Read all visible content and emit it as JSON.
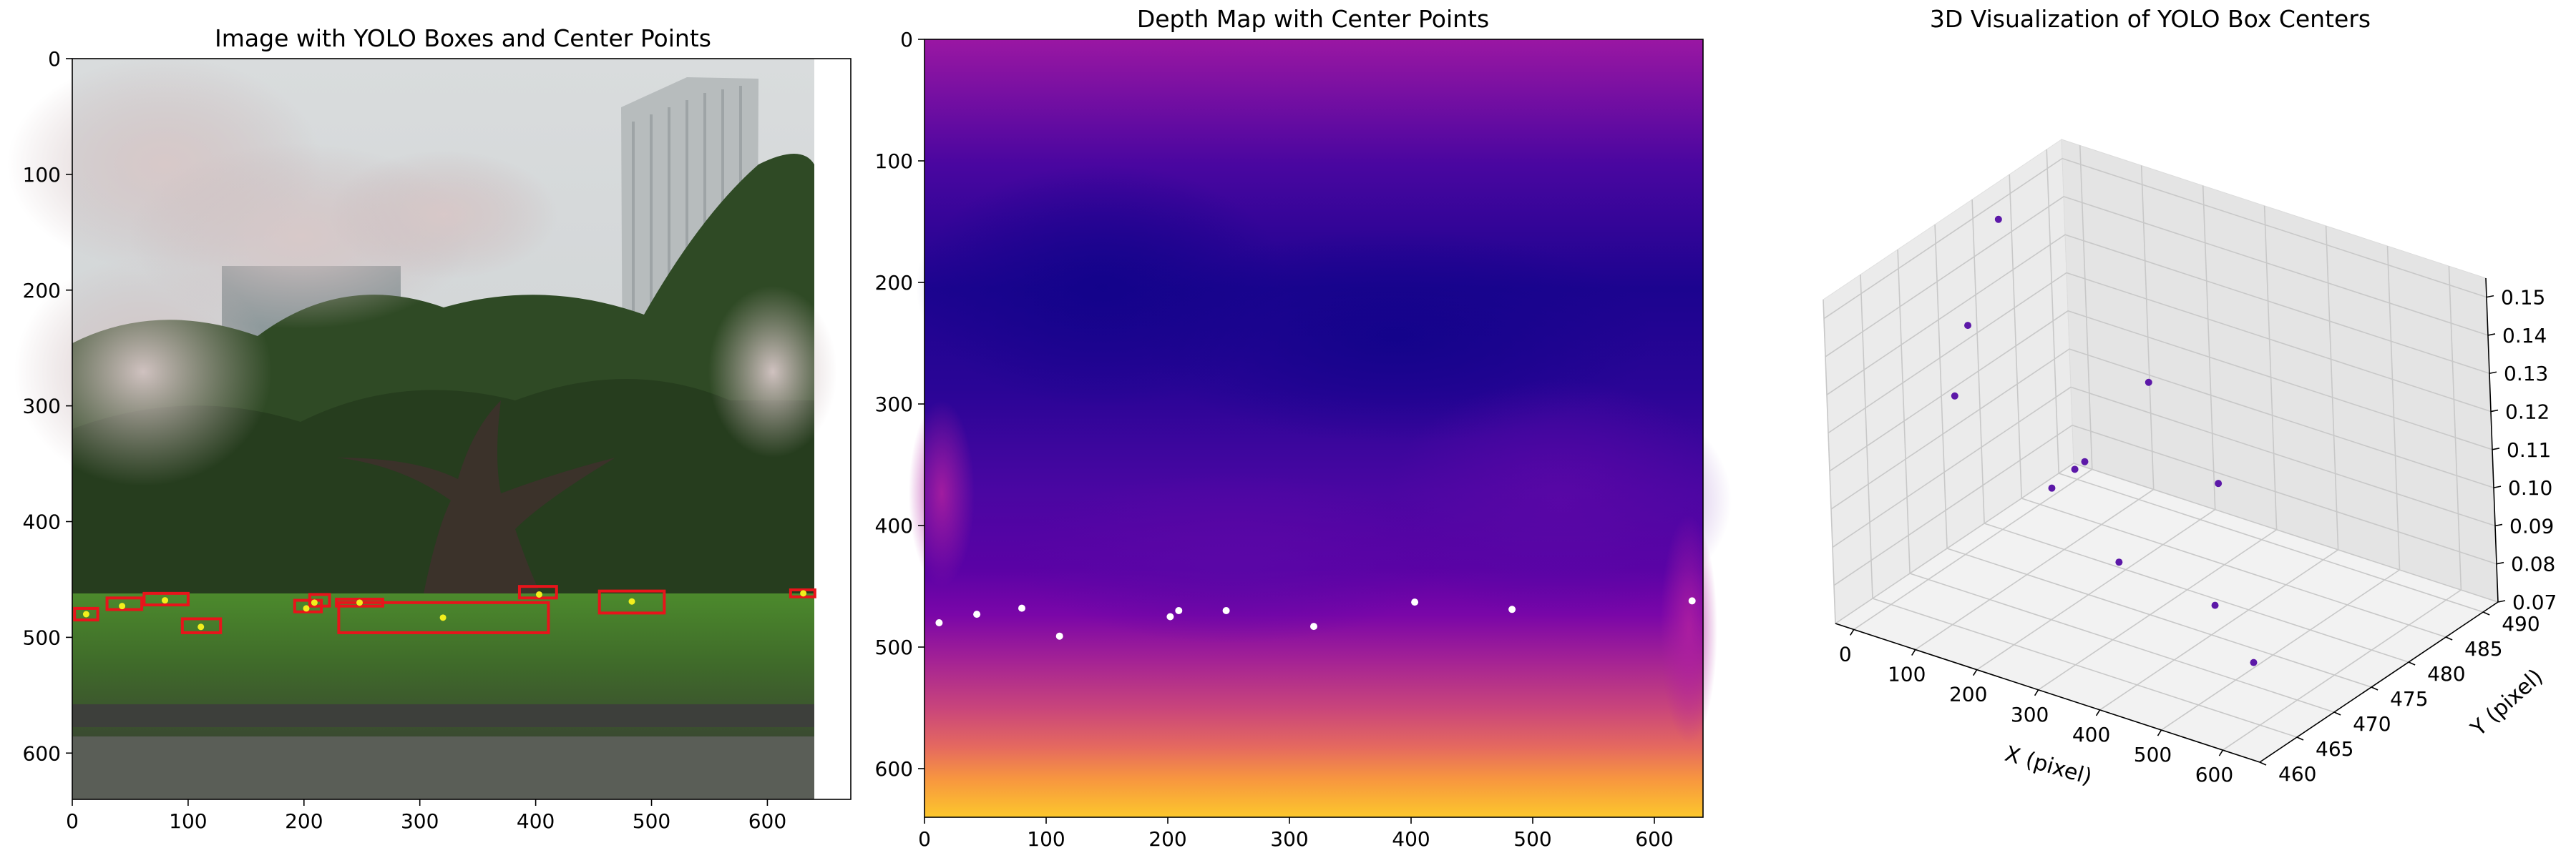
{
  "chart_data": [
    {
      "type": "scatter",
      "title": "Image with YOLO Boxes and Center Points",
      "xlim": [
        0,
        672
      ],
      "ylim": [
        640,
        0
      ],
      "xticks": [
        0,
        100,
        200,
        300,
        400,
        500,
        600
      ],
      "yticks": [
        0,
        100,
        200,
        300,
        400,
        500,
        600
      ],
      "image_extent": {
        "x": [
          0,
          640
        ],
        "y": [
          0,
          640
        ]
      },
      "box_color": "#e8141b",
      "center_color": "#f2ef1d",
      "boxes": [
        {
          "x1": 2,
          "y1": 475,
          "x2": 22,
          "y2": 485
        },
        {
          "x1": 30,
          "y1": 466,
          "x2": 60,
          "y2": 476
        },
        {
          "x1": 62,
          "y1": 462,
          "x2": 100,
          "y2": 472
        },
        {
          "x1": 95,
          "y1": 484,
          "x2": 128,
          "y2": 496
        },
        {
          "x1": 192,
          "y1": 468,
          "x2": 215,
          "y2": 478
        },
        {
          "x1": 205,
          "y1": 463,
          "x2": 222,
          "y2": 473
        },
        {
          "x1": 228,
          "y1": 467,
          "x2": 268,
          "y2": 473
        },
        {
          "x1": 230,
          "y1": 470,
          "x2": 411,
          "y2": 496
        },
        {
          "x1": 386,
          "y1": 456,
          "x2": 418,
          "y2": 466
        },
        {
          "x1": 455,
          "y1": 460,
          "x2": 511,
          "y2": 479
        },
        {
          "x1": 620,
          "y1": 459,
          "x2": 641,
          "y2": 465
        }
      ],
      "points": [
        {
          "x": 12,
          "y": 480
        },
        {
          "x": 43,
          "y": 473
        },
        {
          "x": 80,
          "y": 468
        },
        {
          "x": 111,
          "y": 491
        },
        {
          "x": 202,
          "y": 475
        },
        {
          "x": 209,
          "y": 470
        },
        {
          "x": 248,
          "y": 470
        },
        {
          "x": 320,
          "y": 483
        },
        {
          "x": 403,
          "y": 463
        },
        {
          "x": 483,
          "y": 469
        },
        {
          "x": 631,
          "y": 462
        }
      ]
    },
    {
      "type": "heatmap",
      "title": "Depth Map with Center Points",
      "xlim": [
        0,
        640
      ],
      "ylim": [
        640,
        0
      ],
      "xticks": [
        0,
        100,
        200,
        300,
        400,
        500,
        600
      ],
      "yticks": [
        0,
        100,
        200,
        300,
        400,
        500,
        600
      ],
      "colormap": "plasma",
      "point_color": "#ffffff",
      "points": [
        {
          "x": 12,
          "y": 480
        },
        {
          "x": 43,
          "y": 473
        },
        {
          "x": 80,
          "y": 468
        },
        {
          "x": 111,
          "y": 491
        },
        {
          "x": 202,
          "y": 475
        },
        {
          "x": 209,
          "y": 470
        },
        {
          "x": 248,
          "y": 470
        },
        {
          "x": 320,
          "y": 483
        },
        {
          "x": 403,
          "y": 463
        },
        {
          "x": 483,
          "y": 469
        },
        {
          "x": 631,
          "y": 462
        }
      ]
    },
    {
      "type": "scatter",
      "title": "3D Visualization of YOLO Box Centers",
      "xlabel": "X (pixel)",
      "ylabel": "Y (pixel)",
      "xlim": [
        -30,
        660
      ],
      "ylim": [
        460,
        492
      ],
      "zlim": [
        0.07,
        0.155
      ],
      "xticks": [
        0,
        100,
        200,
        300,
        400,
        500,
        600
      ],
      "yticks": [
        460,
        465,
        470,
        475,
        480,
        485,
        490
      ],
      "zticks": [
        0.07,
        0.08,
        0.09,
        0.1,
        0.11,
        0.12,
        0.13,
        0.14,
        0.15
      ],
      "zticklabels": [
        "0.07",
        "0.08",
        "0.09",
        "0.10",
        "0.11",
        "0.12",
        "0.13",
        "0.14",
        "0.15"
      ],
      "marker_color": "#5c18a8",
      "points": [
        {
          "x": 12,
          "y": 480,
          "z": 0.152
        },
        {
          "x": 43,
          "y": 473,
          "z": 0.135
        },
        {
          "x": 80,
          "y": 468,
          "z": 0.125
        },
        {
          "x": 111,
          "y": 491,
          "z": 0.1
        },
        {
          "x": 202,
          "y": 475,
          "z": 0.105
        },
        {
          "x": 209,
          "y": 470,
          "z": 0.105
        },
        {
          "x": 248,
          "y": 470,
          "z": 0.112
        },
        {
          "x": 320,
          "y": 483,
          "z": 0.095
        },
        {
          "x": 403,
          "y": 463,
          "z": 0.105
        },
        {
          "x": 483,
          "y": 469,
          "z": 0.09
        },
        {
          "x": 631,
          "y": 462,
          "z": 0.092
        }
      ]
    }
  ]
}
